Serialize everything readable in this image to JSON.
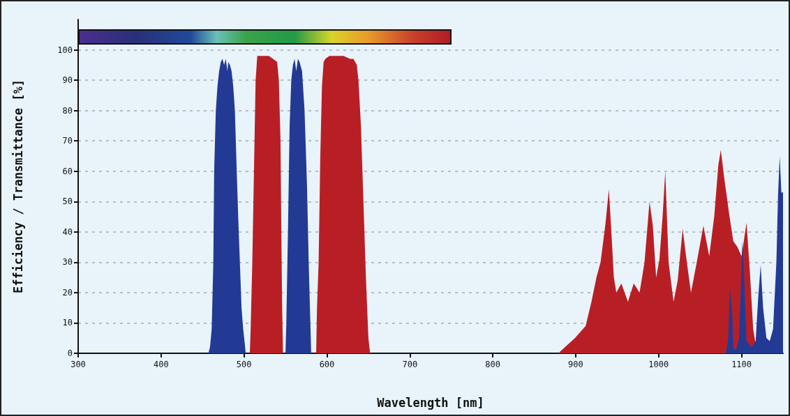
{
  "chart_data": {
    "type": "area",
    "xlabel": "Wavelength [nm]",
    "ylabel": "Efficiency / Transmittance [%]",
    "xlim": [
      300,
      1150
    ],
    "ylim": [
      0,
      110
    ],
    "xticks": [
      300,
      400,
      500,
      600,
      700,
      800,
      900,
      1000,
      1100
    ],
    "yticks": [
      0,
      10,
      20,
      30,
      40,
      50,
      60,
      70,
      80,
      90,
      100
    ],
    "grid": "y",
    "marker": "none",
    "series": [
      {
        "color": "#b81f25",
        "x": [
          300,
          507,
          508,
          510,
          512,
          514,
          516,
          530,
          535,
          540,
          542,
          544,
          545,
          546,
          547,
          587,
          588,
          590,
          592,
          594,
          596,
          598,
          603,
          610,
          620,
          628,
          632,
          636,
          638,
          641,
          644,
          647,
          650,
          652,
          879,
          887,
          899,
          912,
          919,
          925,
          930,
          936,
          940,
          943,
          946,
          949,
          955,
          963,
          970,
          977,
          983,
          989,
          993,
          997,
          1001,
          1005,
          1008,
          1012,
          1018,
          1023,
          1029,
          1034,
          1039,
          1046,
          1054,
          1061,
          1067,
          1072,
          1075,
          1079,
          1085,
          1090,
          1095,
          1100,
          1106,
          1110,
          1114,
          1117,
          1118,
          1150
        ],
        "values": [
          0,
          0,
          8,
          30,
          60,
          90,
          98,
          98,
          97,
          96,
          90,
          70,
          40,
          15,
          0,
          0,
          15,
          30,
          65,
          88,
          96,
          97,
          98,
          98,
          98,
          97,
          97,
          95,
          90,
          75,
          50,
          25,
          5,
          0,
          0,
          2,
          5,
          9,
          17,
          25,
          30,
          43,
          54,
          40,
          25,
          20,
          23,
          17,
          23,
          20,
          30,
          50,
          42,
          25,
          31,
          46,
          60,
          30,
          17,
          24,
          41,
          30,
          20,
          30,
          42,
          32,
          45,
          62,
          67,
          58,
          46,
          37,
          35,
          32,
          43,
          27,
          8,
          3,
          0,
          0
        ]
      },
      {
        "color": "#233a94",
        "x": [
          300,
          457,
          459,
          461,
          463,
          464,
          466,
          468,
          470,
          472,
          474,
          476,
          478,
          480,
          481,
          483,
          485,
          487,
          489,
          491,
          493,
          495,
          497,
          499,
          501,
          502,
          550,
          551,
          553,
          555,
          557,
          559,
          561,
          563,
          565,
          567,
          570,
          573,
          576,
          578,
          580,
          581,
          1081,
          1084,
          1086,
          1089,
          1090,
          1093,
          1097,
          1101,
          1103,
          1106,
          1112,
          1117,
          1120,
          1123,
          1126,
          1130,
          1134,
          1138,
          1142,
          1144,
          1146,
          1148,
          1150
        ],
        "values": [
          0,
          0,
          2,
          8,
          30,
          60,
          80,
          88,
          93,
          96,
          97,
          95,
          97,
          93,
          96,
          95,
          93,
          88,
          80,
          62,
          45,
          30,
          15,
          8,
          3,
          0,
          0,
          10,
          40,
          75,
          90,
          95,
          97,
          93,
          97,
          96,
          93,
          80,
          55,
          30,
          10,
          0,
          0,
          5,
          22,
          12,
          2,
          1,
          5,
          37,
          25,
          4,
          2,
          4,
          18,
          29,
          15,
          5,
          4,
          8,
          30,
          52,
          65,
          53,
          53
        ]
      }
    ]
  }
}
